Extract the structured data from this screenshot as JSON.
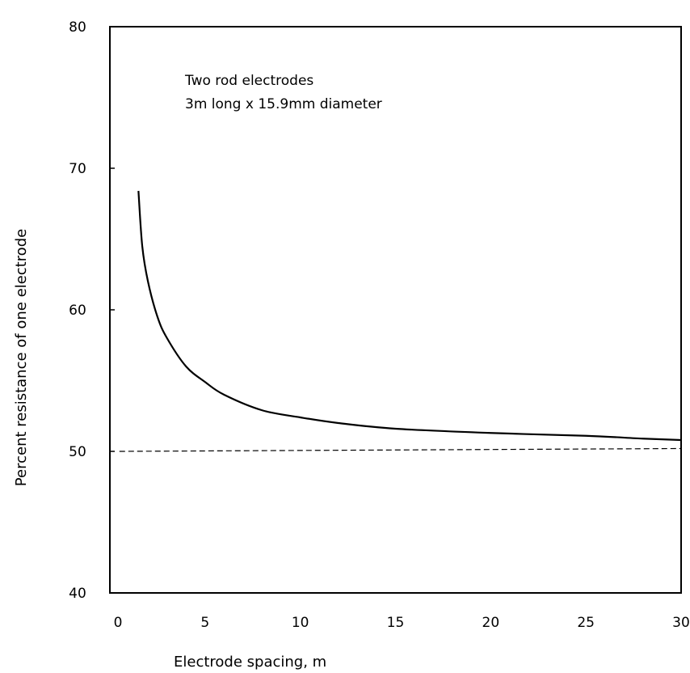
{
  "chart_data": {
    "type": "line",
    "title": "",
    "xlabel": "Electrode spacing, m",
    "ylabel": "Percent resistance of one electrode",
    "xlim": [
      0,
      30
    ],
    "ylim": [
      40,
      80
    ],
    "x_ticks": [
      "0",
      "5",
      "10",
      "15",
      "20",
      "25",
      "30"
    ],
    "y_ticks": [
      "40",
      "50",
      "60",
      "70",
      "80"
    ],
    "grid": false,
    "legend": "none",
    "annotations": [
      "Two rod electrodes",
      "3m long x 15.9mm diameter"
    ],
    "series": [
      {
        "style": "solid",
        "x": [
          1.5,
          1.7,
          2.0,
          2.5,
          3.0,
          4.0,
          5.0,
          6.0,
          8.0,
          10.0,
          12.0,
          15.0,
          20.0,
          25.0,
          28.0,
          30.0
        ],
        "y": [
          68.4,
          64.5,
          62.0,
          59.5,
          58.0,
          56.0,
          54.9,
          54.0,
          52.9,
          52.4,
          52.0,
          51.6,
          51.3,
          51.1,
          50.9,
          50.8
        ]
      },
      {
        "style": "dashed",
        "x": [
          0.5,
          30.0
        ],
        "y": [
          50.0,
          50.2
        ]
      }
    ]
  },
  "colors": {
    "line": "#000000",
    "background": "#ffffff"
  }
}
